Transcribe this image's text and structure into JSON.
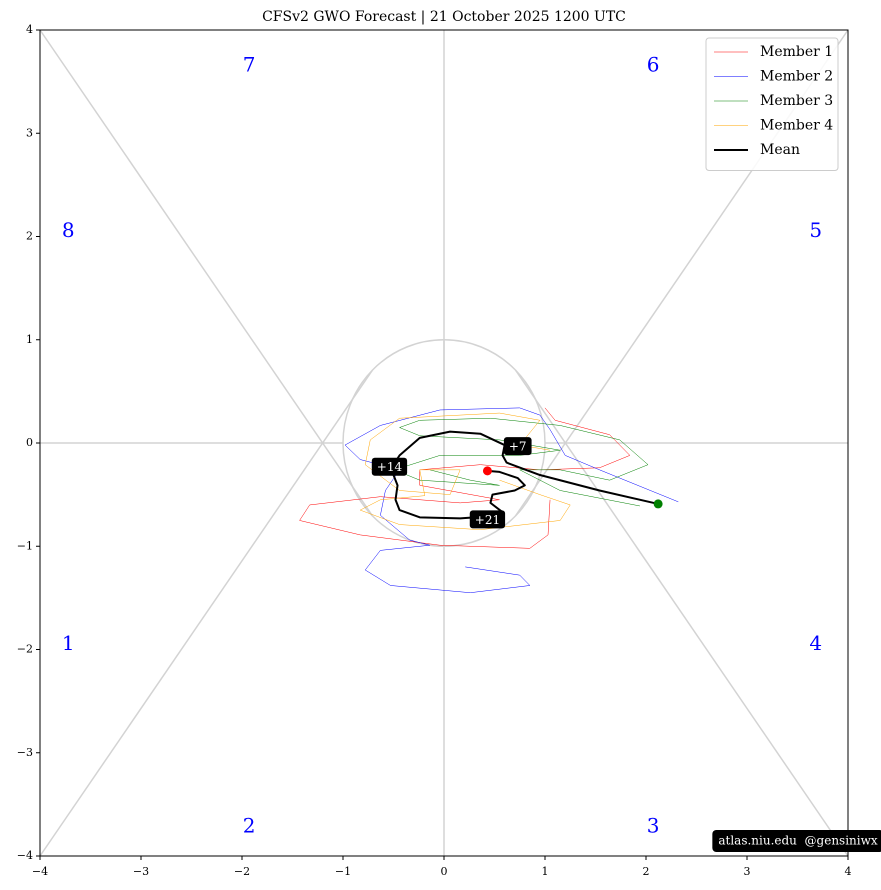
{
  "chart_data": {
    "type": "line",
    "title": "CFSv2 GWO Forecast   |   21  October  2025 1200 UTC",
    "xlim": [
      -4,
      4
    ],
    "ylim": [
      -4,
      4
    ],
    "xticks": [
      {
        "value": -4,
        "label": "−4"
      },
      {
        "value": -3,
        "label": "−3"
      },
      {
        "value": -2,
        "label": "−2"
      },
      {
        "value": -1,
        "label": "−1"
      },
      0,
      1,
      2,
      3,
      4
    ],
    "yticks": [
      {
        "value": -4,
        "label": "−4"
      },
      {
        "value": -3,
        "label": "−3"
      },
      {
        "value": -2,
        "label": "−2"
      },
      {
        "value": -1,
        "label": "−1"
      },
      0,
      1,
      2,
      3,
      4
    ],
    "phase_labels": [
      "1",
      "2",
      "3",
      "4",
      "5",
      "6",
      "7",
      "8"
    ],
    "legend": "upper right",
    "series": [
      {
        "name": "Member 1",
        "color": "#ff0000",
        "width": 0.5,
        "x": [
          1.0,
          1.1,
          1.64,
          1.84,
          1.54,
          0.95,
          0.36,
          -0.24,
          -0.24,
          0.55,
          0.16,
          -0.63,
          -1.33,
          -1.43,
          -0.83,
          -0.04,
          0.85,
          1.03,
          1.05
        ],
        "values": [
          0.34,
          0.22,
          0.08,
          -0.12,
          -0.24,
          -0.26,
          -0.21,
          -0.26,
          -0.41,
          -0.55,
          -0.58,
          -0.52,
          -0.6,
          -0.75,
          -0.89,
          -0.99,
          -1.02,
          -0.89,
          -0.55
        ]
      },
      {
        "name": "Member 2",
        "color": "#0000ff",
        "width": 0.5,
        "x": [
          2.32,
          1.54,
          1.2,
          1.05,
          0.95,
          0.75,
          -0.04,
          -0.63,
          -0.98,
          -0.83,
          -0.44,
          -0.58,
          -0.63,
          -0.34,
          -0.14,
          -0.63,
          -0.78,
          -0.53,
          0.26,
          0.85,
          0.75,
          0.21
        ],
        "values": [
          -0.57,
          -0.26,
          -0.12,
          0.13,
          0.27,
          0.34,
          0.32,
          0.17,
          -0.02,
          -0.16,
          -0.26,
          -0.46,
          -0.7,
          -0.94,
          -0.99,
          -1.04,
          -1.23,
          -1.38,
          -1.45,
          -1.38,
          -1.28,
          -1.2
        ]
      },
      {
        "name": "Member 3",
        "color": "#008000",
        "width": 0.5,
        "x": [
          1.94,
          1.15,
          0.75,
          1.15,
          1.64,
          2.02,
          1.74,
          1.15,
          0.46,
          -0.24,
          -0.44,
          -0.24,
          0.55,
          1.15,
          0.75,
          -0.04,
          -0.49,
          -0.24,
          0.55,
          0.26,
          -0.14
        ],
        "values": [
          -0.61,
          -0.46,
          -0.26,
          -0.26,
          -0.36,
          -0.21,
          0.03,
          0.17,
          0.24,
          0.22,
          0.15,
          0.07,
          0.03,
          -0.07,
          -0.12,
          -0.12,
          -0.26,
          -0.36,
          -0.41,
          -0.36,
          -0.26
        ]
      },
      {
        "name": "Member 4",
        "color": "#ffa500",
        "width": 0.5,
        "x": [
          1.05,
          0.75,
          0.95,
          0.55,
          -0.44,
          -0.73,
          -0.78,
          -0.44,
          0.06,
          0.16,
          -0.24,
          -0.19,
          -0.63,
          -0.83,
          -0.44,
          0.36,
          1.15,
          1.25,
          0.95,
          0.55
        ],
        "values": [
          -0.07,
          -0.02,
          0.22,
          0.29,
          0.24,
          0.03,
          -0.21,
          -0.46,
          -0.5,
          -0.26,
          -0.26,
          -0.51,
          -0.55,
          -0.65,
          -0.79,
          -0.84,
          -0.75,
          -0.6,
          -0.5,
          -0.36
        ]
      },
      {
        "name": "Mean",
        "color": "#000000",
        "width": 2,
        "x": [
          2.12,
          1.54,
          0.95,
          0.62,
          0.58,
          0.6,
          0.36,
          0.06,
          -0.24,
          -0.44,
          -0.5,
          -0.5,
          -0.46,
          -0.48,
          -0.44,
          -0.24,
          0.16,
          0.46,
          0.58,
          0.46,
          0.48,
          0.7,
          0.8,
          0.73,
          0.55,
          0.43
        ],
        "values": [
          -0.59,
          -0.46,
          -0.31,
          -0.19,
          -0.12,
          -0.02,
          0.09,
          0.11,
          0.05,
          -0.12,
          -0.21,
          -0.31,
          -0.41,
          -0.55,
          -0.65,
          -0.72,
          -0.73,
          -0.71,
          -0.67,
          -0.58,
          -0.5,
          -0.46,
          -0.41,
          -0.34,
          -0.28,
          -0.27
        ]
      }
    ],
    "start_color": "#008000",
    "end_color": "#ff0000",
    "annotations": [
      {
        "text": "+7",
        "x": 0.73,
        "y": -0.03
      },
      {
        "text": "+14",
        "x": -0.54,
        "y": -0.23
      },
      {
        "text": "+21",
        "x": 0.43,
        "y": -0.74
      }
    ],
    "credit": "atlas.niu.edu  @gensiniwx"
  }
}
